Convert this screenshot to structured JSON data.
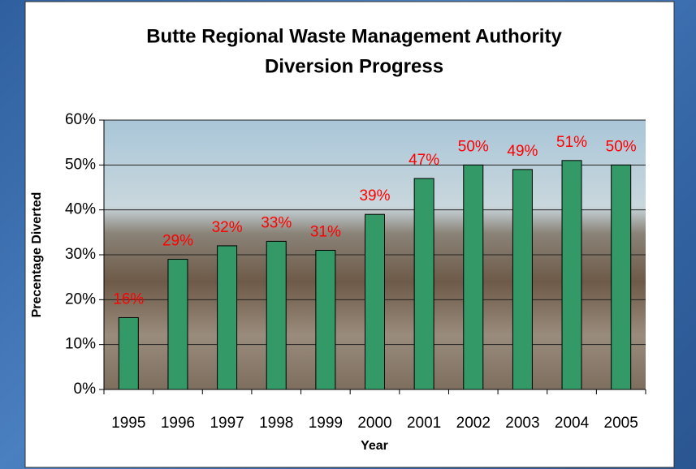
{
  "chart_data": {
    "type": "bar",
    "title": [
      "Butte Regional Waste Management Authority",
      "Diversion Progress"
    ],
    "x_label": "Year",
    "y_label": "Precentage Diverted",
    "categories": [
      "1995",
      "1996",
      "1997",
      "1998",
      "1999",
      "2000",
      "2001",
      "2002",
      "2003",
      "2004",
      "2005"
    ],
    "values": [
      16,
      29,
      32,
      33,
      31,
      39,
      47,
      50,
      49,
      51,
      50
    ],
    "value_labels": [
      "16%",
      "29%",
      "32%",
      "33%",
      "31%",
      "39%",
      "47%",
      "50%",
      "49%",
      "51%",
      "50%"
    ],
    "color": "#339966",
    "ylim": [
      0,
      60
    ],
    "yticks": [
      {
        "value": 0,
        "label": "0%"
      },
      {
        "value": 10,
        "label": "10%"
      },
      {
        "value": 20,
        "label": "20%"
      },
      {
        "value": 30,
        "label": "30%"
      },
      {
        "value": 40,
        "label": "40%"
      },
      {
        "value": 50,
        "label": "50%"
      },
      {
        "value": 60,
        "label": "60%"
      }
    ],
    "grid": true
  }
}
